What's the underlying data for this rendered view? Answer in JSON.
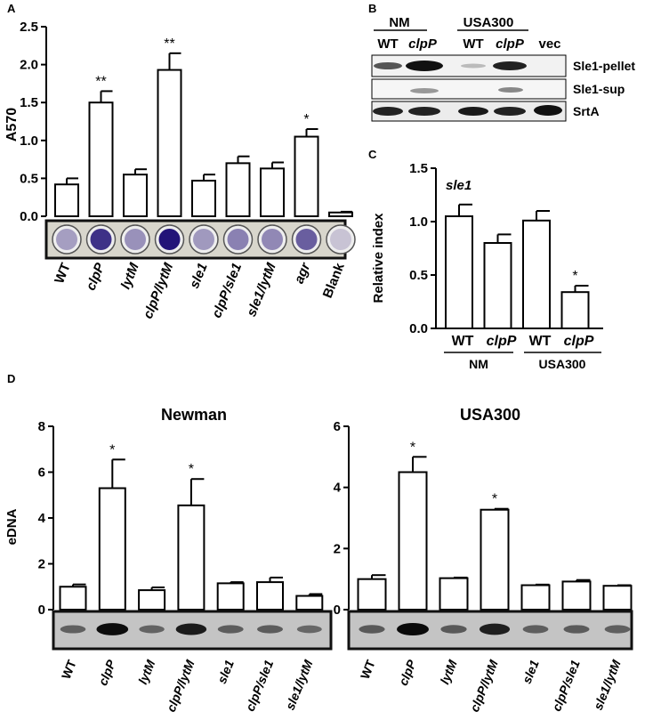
{
  "panels": {
    "A": {
      "letter": "A",
      "ylabel": "A570",
      "yticks": [
        "0.0",
        "0.5",
        "1.0",
        "1.5",
        "2.0",
        "2.5"
      ],
      "strip_label": "crystal violet wells"
    },
    "B": {
      "letter": "B",
      "group1": "NM",
      "group2": "USA300",
      "lanes": [
        "WT",
        "clpP",
        "WT",
        "clpP",
        "vec"
      ],
      "rows": [
        "Sle1-pellet",
        "Sle1-sup",
        "SrtA"
      ]
    },
    "C": {
      "letter": "C",
      "title": "sle1",
      "ylabel": "Relative index",
      "yticks": [
        "0.0",
        "0.5",
        "1.0",
        "1.5"
      ],
      "group1": "NM",
      "group2": "USA300"
    },
    "D": {
      "letter": "D",
      "ylabel": "eDNA",
      "left_title": "Newman",
      "right_title": "USA300",
      "left_yticks": [
        "0",
        "2",
        "4",
        "6",
        "8"
      ],
      "right_yticks": [
        "0",
        "2",
        "4",
        "6"
      ]
    }
  },
  "chart_data": [
    {
      "type": "bar",
      "panel": "A",
      "categories": [
        "WT",
        "clpP",
        "lytM",
        "clpP/lytM",
        "sle1",
        "clpP/sle1",
        "sle1/lytM",
        "agr",
        "Blank"
      ],
      "values": [
        0.42,
        1.5,
        0.55,
        1.93,
        0.47,
        0.7,
        0.63,
        1.05,
        0.05
      ],
      "errors": [
        0.08,
        0.15,
        0.07,
        0.22,
        0.08,
        0.09,
        0.08,
        0.1,
        0.01
      ],
      "significance": [
        "",
        "**",
        "",
        "**",
        "",
        "",
        "",
        "*",
        ""
      ],
      "ylabel": "A570",
      "ylim": [
        0,
        2.5
      ]
    },
    {
      "type": "bar",
      "panel": "C",
      "title": "sle1",
      "categories": [
        "WT",
        "clpP",
        "WT",
        "clpP"
      ],
      "values": [
        1.05,
        0.8,
        1.01,
        0.34
      ],
      "errors": [
        0.11,
        0.08,
        0.09,
        0.06
      ],
      "significance": [
        "",
        "",
        "",
        "*"
      ],
      "ylabel": "Relative index",
      "ylim": [
        0,
        1.5
      ]
    },
    {
      "type": "bar",
      "panel": "D",
      "title": "Newman",
      "categories": [
        "WT",
        "clpP",
        "lytM",
        "clpP/lytM",
        "sle1",
        "clpP/sle1",
        "sle1/lytM"
      ],
      "values": [
        1.0,
        5.3,
        0.85,
        4.55,
        1.15,
        1.2,
        0.6
      ],
      "errors": [
        0.1,
        1.25,
        0.12,
        1.15,
        0.05,
        0.2,
        0.08
      ],
      "significance": [
        "",
        "*",
        "",
        "*",
        "",
        "",
        ""
      ],
      "ylabel": "eDNA",
      "ylim": [
        0,
        8
      ]
    },
    {
      "type": "bar",
      "panel": "D",
      "title": "USA300",
      "categories": [
        "WT",
        "clpP",
        "lytM",
        "clpP/lytM",
        "sle1",
        "clpP/sle1",
        "sle1/lytM"
      ],
      "values": [
        1.0,
        4.5,
        1.03,
        3.27,
        0.8,
        0.92,
        0.78
      ],
      "errors": [
        0.13,
        0.5,
        0.02,
        0.03,
        0.02,
        0.05,
        0.02
      ],
      "significance": [
        "",
        "*",
        "",
        "*",
        "",
        "",
        ""
      ],
      "ylabel": "eDNA",
      "ylim": [
        0,
        6
      ]
    }
  ]
}
